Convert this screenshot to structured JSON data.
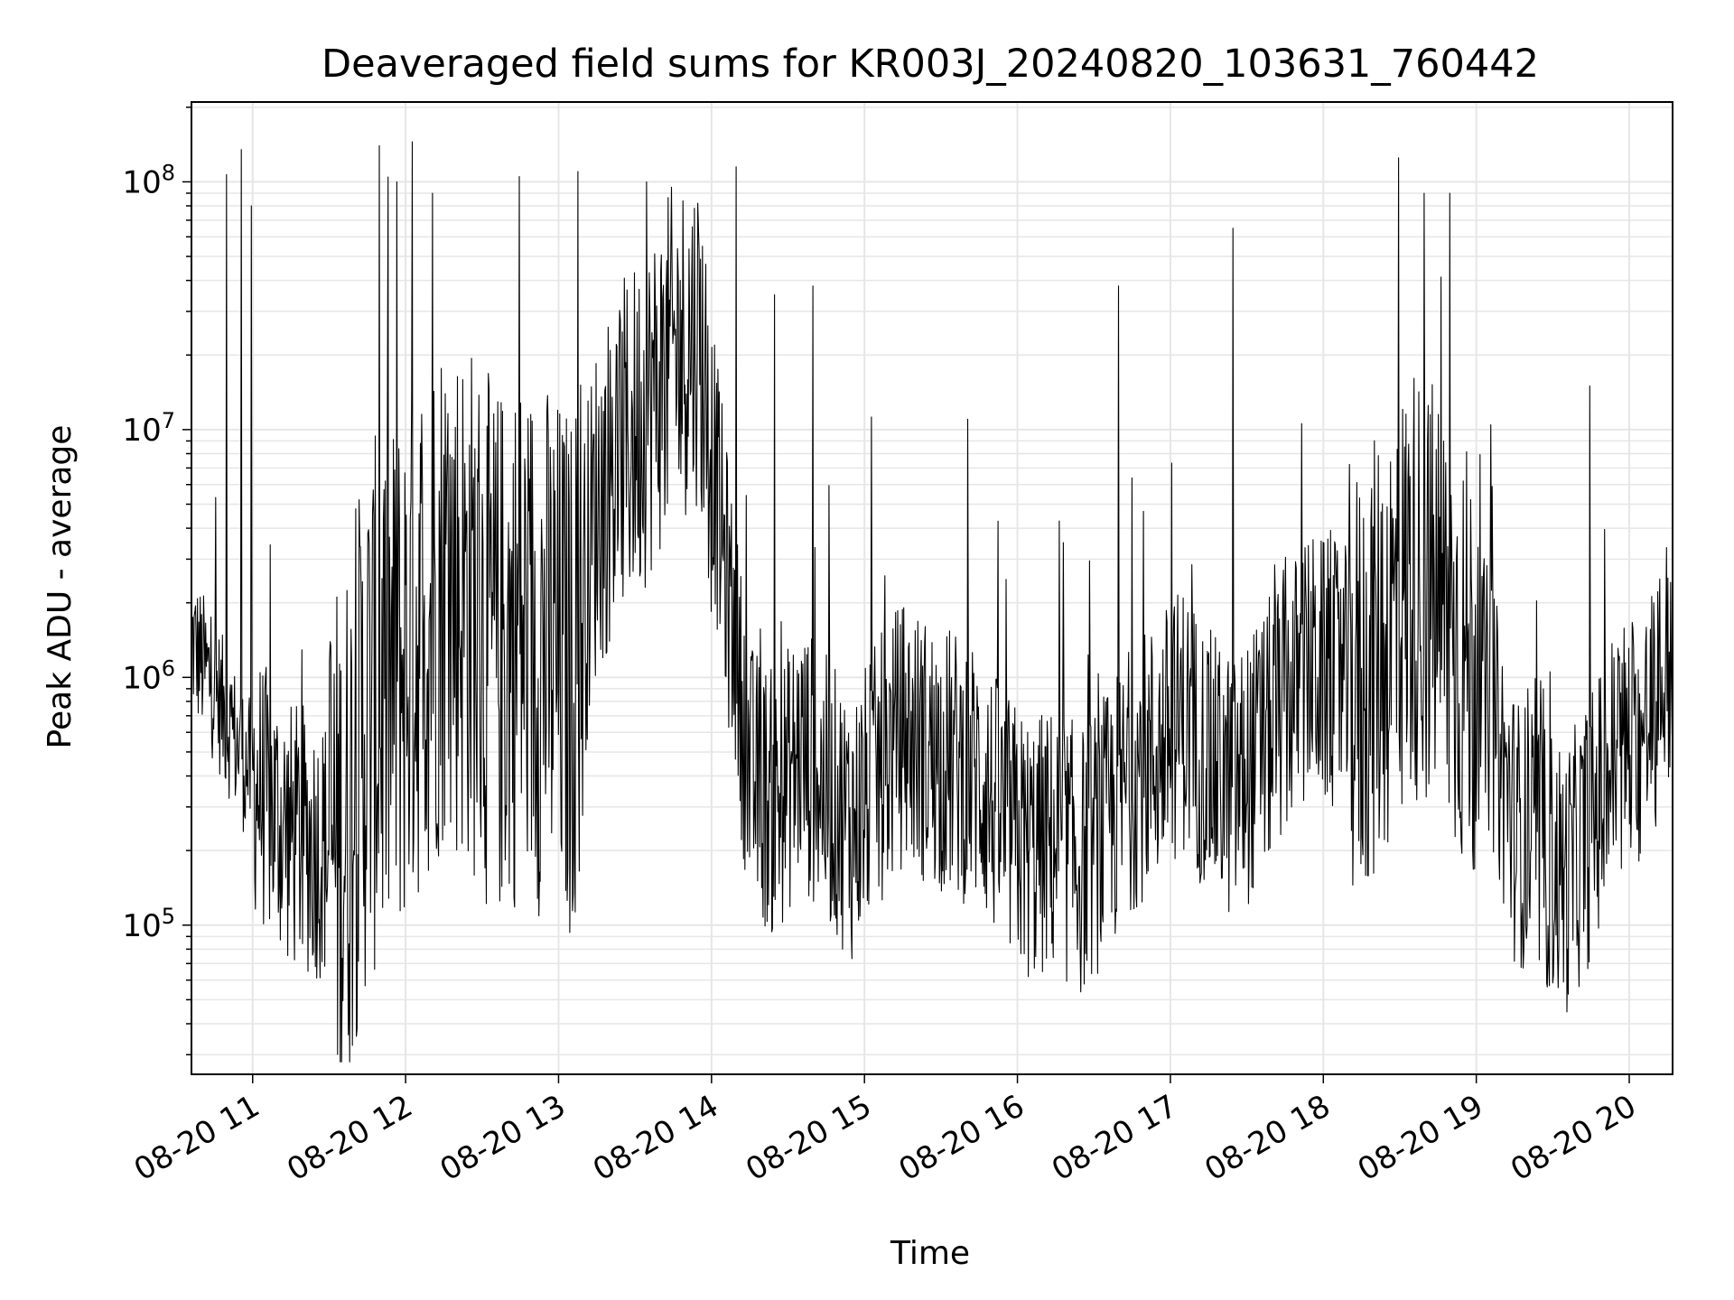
{
  "chart_data": {
    "type": "line",
    "title": "Deaveraged field sums for KR003J_20240820_103631_760442",
    "xlabel": "Time",
    "ylabel": "Peak ADU - average",
    "yscale": "log",
    "grid": true,
    "ylim": [
      25000,
      210000000
    ],
    "xlim": [
      "2024-08-20 10:36",
      "2024-08-20 20:17"
    ],
    "x_ticks": [
      "08-20 11",
      "08-20 12",
      "08-20 13",
      "08-20 14",
      "08-20 15",
      "08-20 16",
      "08-20 17",
      "08-20 18",
      "08-20 19",
      "08-20 20"
    ],
    "y_ticks": [
      {
        "base": "10",
        "exp": "5",
        "value": 100000
      },
      {
        "base": "10",
        "exp": "6",
        "value": 1000000
      },
      {
        "base": "10",
        "exp": "7",
        "value": 10000000
      },
      {
        "base": "10",
        "exp": "8",
        "value": 100000000
      }
    ],
    "line_color": "#000000",
    "series": [
      {
        "x": [
          "2024-08-20 10:36",
          "2024-08-20 10:45",
          "2024-08-20 10:55",
          "2024-08-20 11:05",
          "2024-08-20 11:15",
          "2024-08-20 11:25",
          "2024-08-20 11:35",
          "2024-08-20 11:45",
          "2024-08-20 11:55",
          "2024-08-20 12:05",
          "2024-08-20 12:15",
          "2024-08-20 12:25",
          "2024-08-20 12:35",
          "2024-08-20 12:45",
          "2024-08-20 12:55",
          "2024-08-20 13:05",
          "2024-08-20 13:15",
          "2024-08-20 13:25",
          "2024-08-20 13:35",
          "2024-08-20 13:45",
          "2024-08-20 13:55",
          "2024-08-20 14:05",
          "2024-08-20 14:15",
          "2024-08-20 14:25",
          "2024-08-20 14:35",
          "2024-08-20 14:45",
          "2024-08-20 14:55",
          "2024-08-20 15:05",
          "2024-08-20 15:15",
          "2024-08-20 15:25",
          "2024-08-20 15:35",
          "2024-08-20 15:45",
          "2024-08-20 15:55",
          "2024-08-20 16:05",
          "2024-08-20 16:15",
          "2024-08-20 16:25",
          "2024-08-20 16:35",
          "2024-08-20 16:45",
          "2024-08-20 16:55",
          "2024-08-20 17:05",
          "2024-08-20 17:15",
          "2024-08-20 17:25",
          "2024-08-20 17:35",
          "2024-08-20 17:45",
          "2024-08-20 17:55",
          "2024-08-20 18:05",
          "2024-08-20 18:15",
          "2024-08-20 18:25",
          "2024-08-20 18:35",
          "2024-08-20 18:45",
          "2024-08-20 18:55",
          "2024-08-20 19:05",
          "2024-08-20 19:15",
          "2024-08-20 19:25",
          "2024-08-20 19:35",
          "2024-08-20 19:45",
          "2024-08-20 19:55",
          "2024-08-20 20:05",
          "2024-08-20 20:17"
        ],
        "values": [
          1400000,
          900000,
          500000,
          320000,
          230000,
          210000,
          200000,
          700000,
          900000,
          1500000,
          2500000,
          2000000,
          1200000,
          1500000,
          1300000,
          1000000,
          5000000,
          8000000,
          12000000,
          20000000,
          25000000,
          3000000,
          400000,
          300000,
          500000,
          350000,
          250000,
          400000,
          600000,
          500000,
          450000,
          400000,
          250000,
          200000,
          220000,
          180000,
          250000,
          400000,
          500000,
          700000,
          450000,
          350000,
          500000,
          800000,
          1100000,
          1000000,
          900000,
          1500000,
          2500000,
          2000000,
          1200000,
          800000,
          250000,
          200000,
          150000,
          250000,
          500000,
          550000,
          1300000
        ],
        "spikes": [
          [
            "2024-08-20 10:50",
            107000000
          ],
          [
            "2024-08-20 10:56",
            135000000
          ],
          [
            "2024-08-20 11:00",
            80000000
          ],
          [
            "2024-08-20 11:50",
            140000000
          ],
          [
            "2024-08-20 11:57",
            100000000
          ],
          [
            "2024-08-20 12:03",
            145000000
          ],
          [
            "2024-08-20 12:11",
            90000000
          ],
          [
            "2024-08-20 12:45",
            105000000
          ],
          [
            "2024-08-20 13:08",
            110000000
          ],
          [
            "2024-08-20 13:35",
            100000000
          ],
          [
            "2024-08-20 14:10",
            115000000
          ],
          [
            "2024-08-20 14:25",
            35000000
          ],
          [
            "2024-08-20 14:40",
            38000000
          ],
          [
            "2024-08-20 16:40",
            38000000
          ],
          [
            "2024-08-20 17:25",
            65000000
          ],
          [
            "2024-08-20 18:30",
            125000000
          ],
          [
            "2024-08-20 18:40",
            90000000
          ],
          [
            "2024-08-20 18:50",
            90000000
          ],
          [
            "2024-08-20 19:45",
            15000000
          ],
          [
            "2024-08-20 20:10",
            2000000
          ]
        ]
      }
    ]
  }
}
